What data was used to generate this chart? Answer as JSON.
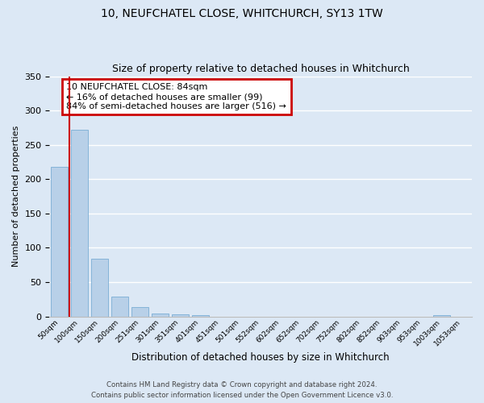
{
  "title1": "10, NEUFCHATEL CLOSE, WHITCHURCH, SY13 1TW",
  "title2": "Size of property relative to detached houses in Whitchurch",
  "xlabel": "Distribution of detached houses by size in Whitchurch",
  "ylabel": "Number of detached properties",
  "bar_color": "#b8d0e8",
  "bar_edge_color": "#7aadd4",
  "background_color": "#dce8f5",
  "fig_background_color": "#dce8f5",
  "grid_color": "#ffffff",
  "categories": [
    "50sqm",
    "100sqm",
    "150sqm",
    "200sqm",
    "251sqm",
    "301sqm",
    "351sqm",
    "401sqm",
    "451sqm",
    "501sqm",
    "552sqm",
    "602sqm",
    "652sqm",
    "702sqm",
    "752sqm",
    "802sqm",
    "852sqm",
    "903sqm",
    "953sqm",
    "1003sqm",
    "1053sqm"
  ],
  "values": [
    218,
    272,
    84,
    29,
    13,
    4,
    3,
    2,
    0,
    0,
    0,
    0,
    0,
    0,
    0,
    0,
    0,
    0,
    0,
    2,
    0
  ],
  "ylim": [
    0,
    350
  ],
  "yticks": [
    0,
    50,
    100,
    150,
    200,
    250,
    300,
    350
  ],
  "annotation_title": "10 NEUFCHATEL CLOSE: 84sqm",
  "annotation_line1": "← 16% of detached houses are smaller (99)",
  "annotation_line2": "84% of semi-detached houses are larger (516) →",
  "annotation_box_color": "#ffffff",
  "annotation_border_color": "#cc0000",
  "red_line_color": "#cc0000",
  "footer1": "Contains HM Land Registry data © Crown copyright and database right 2024.",
  "footer2": "Contains public sector information licensed under the Open Government Licence v3.0."
}
